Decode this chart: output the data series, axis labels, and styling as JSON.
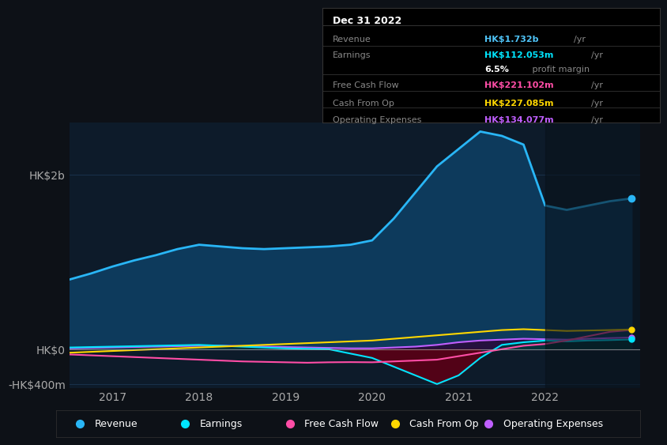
{
  "bg_color": "#0d1117",
  "plot_bg_color": "#0d1b2a",
  "title_box": {
    "date": "Dec 31 2022",
    "rows": [
      {
        "label": "Revenue",
        "value": "HK$1.732b",
        "unit": "/yr",
        "value_color": "#4fc3f7"
      },
      {
        "label": "Earnings",
        "value": "HK$112.053m",
        "unit": "/yr",
        "value_color": "#00e5ff"
      },
      {
        "label": "",
        "value": "6.5%",
        "unit": " profit margin",
        "value_color": "#ffffff"
      },
      {
        "label": "Free Cash Flow",
        "value": "HK$221.102m",
        "unit": "/yr",
        "value_color": "#ff4da6"
      },
      {
        "label": "Cash From Op",
        "value": "HK$227.085m",
        "unit": "/yr",
        "value_color": "#ffd700"
      },
      {
        "label": "Operating Expenses",
        "value": "HK$134.077m",
        "unit": "/yr",
        "value_color": "#bf5fff"
      }
    ]
  },
  "x_years": [
    2016.5,
    2016.75,
    2017.0,
    2017.25,
    2017.5,
    2017.75,
    2018.0,
    2018.25,
    2018.5,
    2018.75,
    2019.0,
    2019.25,
    2019.5,
    2019.75,
    2020.0,
    2020.25,
    2020.5,
    2020.75,
    2021.0,
    2021.25,
    2021.5,
    2021.75,
    2022.0,
    2022.25,
    2022.5,
    2022.75,
    2023.0
  ],
  "revenue": [
    800,
    870,
    950,
    1020,
    1080,
    1150,
    1200,
    1180,
    1160,
    1150,
    1160,
    1170,
    1180,
    1200,
    1250,
    1500,
    1800,
    2100,
    2300,
    2500,
    2450,
    2350,
    1650,
    1600,
    1650,
    1700,
    1732
  ],
  "earnings": [
    20,
    25,
    30,
    35,
    40,
    45,
    50,
    40,
    30,
    20,
    10,
    5,
    0,
    -50,
    -100,
    -200,
    -300,
    -400,
    -300,
    -100,
    50,
    80,
    100,
    90,
    100,
    105,
    112
  ],
  "free_cash_flow": [
    -60,
    -70,
    -80,
    -90,
    -100,
    -110,
    -120,
    -130,
    -140,
    -145,
    -150,
    -155,
    -150,
    -148,
    -150,
    -140,
    -130,
    -120,
    -80,
    -40,
    0,
    40,
    60,
    100,
    150,
    200,
    221
  ],
  "cash_from_op": [
    -40,
    -30,
    -20,
    -10,
    0,
    10,
    20,
    30,
    40,
    50,
    60,
    70,
    80,
    90,
    100,
    120,
    140,
    160,
    180,
    200,
    220,
    230,
    220,
    210,
    215,
    220,
    227
  ],
  "operating_expenses": [
    10,
    15,
    20,
    25,
    30,
    35,
    40,
    40,
    35,
    30,
    25,
    20,
    15,
    10,
    10,
    20,
    30,
    50,
    80,
    100,
    110,
    120,
    115,
    110,
    120,
    128,
    134
  ],
  "revenue_color": "#29b6f6",
  "revenue_fill": "#0d3a5c",
  "earnings_color": "#00e5ff",
  "free_cash_flow_color": "#ff4da6",
  "cash_from_op_color": "#ffd700",
  "operating_expenses_color": "#bf5fff",
  "operating_expenses_fill": "#2a0a3a",
  "ylim_low": -0.45,
  "ylim_high": 2.6,
  "ytick_vals": [
    -0.4,
    0.0,
    2.0
  ],
  "ytick_labels": [
    "-HK$400m",
    "HK$0",
    "HK$2b"
  ],
  "xticks": [
    2017,
    2018,
    2019,
    2020,
    2021,
    2022
  ],
  "legend_items": [
    {
      "label": "Revenue",
      "color": "#29b6f6"
    },
    {
      "label": "Earnings",
      "color": "#00e5ff"
    },
    {
      "label": "Free Cash Flow",
      "color": "#ff4da6"
    },
    {
      "label": "Cash From Op",
      "color": "#ffd700"
    },
    {
      "label": "Operating Expenses",
      "color": "#bf5fff"
    }
  ]
}
